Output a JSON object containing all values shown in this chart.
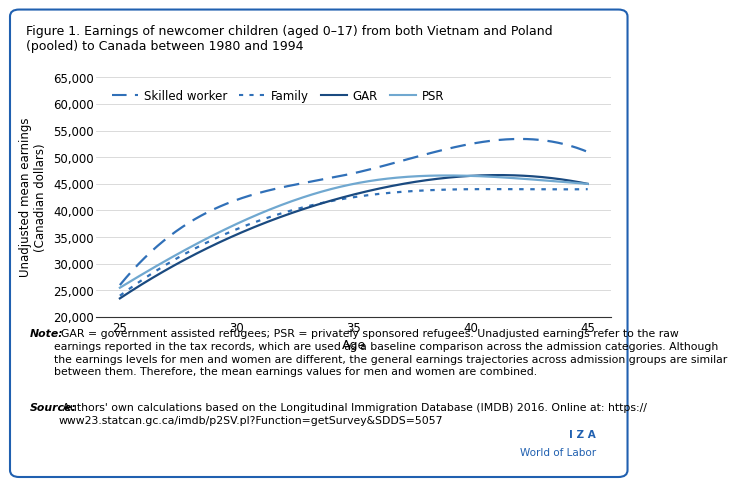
{
  "title": "Figure 1. Earnings of newcomer children (aged 0–17) from both Vietnam and Poland\n(pooled) to Canada between 1980 and 1994",
  "xlabel": "Age",
  "ylabel": "Unadjusted mean earnings\n(Canadian dollars)",
  "x": [
    25,
    30,
    35,
    40,
    45
  ],
  "skilled_worker": [
    26000,
    42000,
    47000,
    52500,
    51000
  ],
  "family": [
    24000,
    36500,
    42500,
    44000,
    44000
  ],
  "gar": [
    23500,
    35500,
    43000,
    46500,
    45000
  ],
  "psr": [
    25500,
    37500,
    45000,
    46500,
    45000
  ],
  "ylim": [
    20000,
    65000
  ],
  "xlim": [
    24,
    46
  ],
  "yticks": [
    20000,
    25000,
    30000,
    35000,
    40000,
    45000,
    50000,
    55000,
    60000,
    65000
  ],
  "xticks": [
    25,
    30,
    35,
    40,
    45
  ],
  "color_skilled": "#3070b8",
  "color_family": "#3070b8",
  "color_gar": "#1a4a80",
  "color_psr": "#70a8d0",
  "note_label": "Note:",
  "note_body": "  GAR = government assisted refugees; PSR = privately sponsored refugees. Unadjusted earnings refer to the raw\nearnings reported in the tax records, which are used as a baseline comparison across the admission categories. Although\nthe earnings levels for men and women are different, the general earnings trajectories across admission groups are similar\nbetween them. Therefore, the mean earnings values for men and women are combined.",
  "source_label": "Source:",
  "source_body": " Authors' own calculations based on the Longitudinal Immigration Database (IMDB) 2016. Online at: https://\nwww23.statcan.gc.ca/imdb/p2SV.pl?Function=getSurvey&SDDS=5057",
  "iza_line1": "I Z A",
  "iza_line2": "World of Labor",
  "background_color": "#ffffff",
  "border_color": "#2060b0",
  "text_color": "#000000",
  "iza_color": "#2060b0"
}
